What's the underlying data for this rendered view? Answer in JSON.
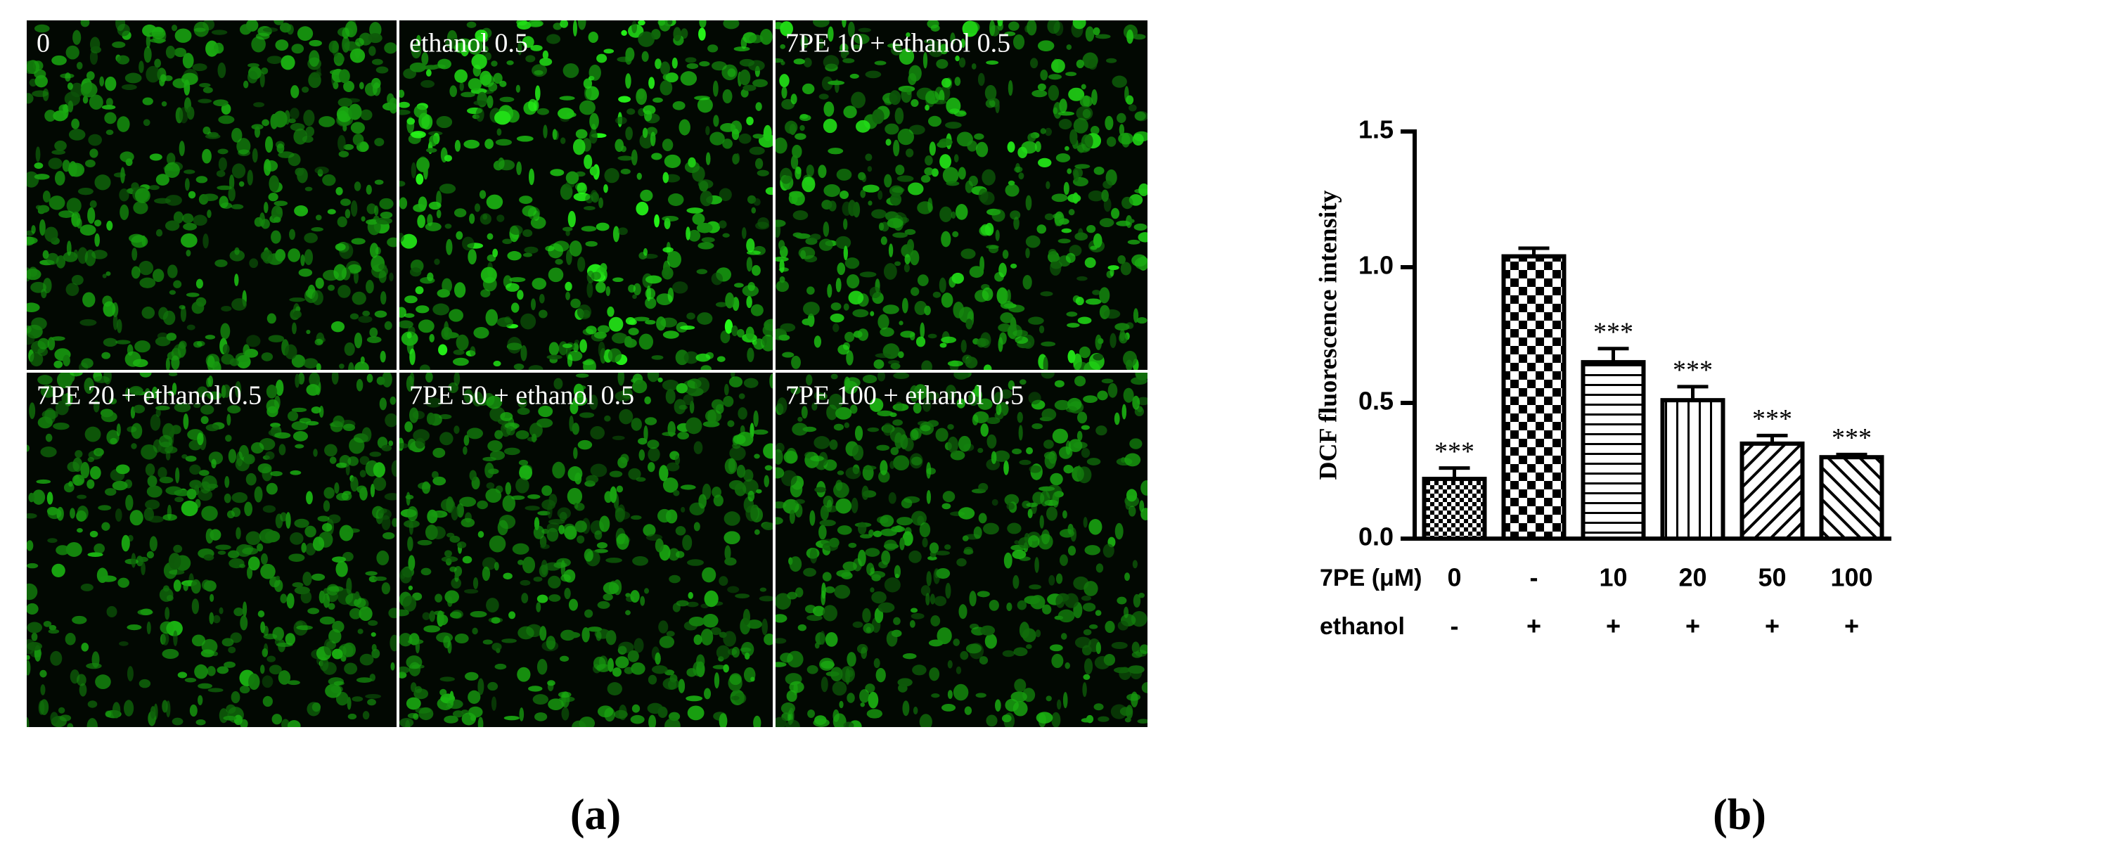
{
  "panels": [
    "0",
    "ethanol 0.5",
    "7PE 10 + ethanol 0.5",
    "7PE 20 + ethanol 0.5",
    "7PE 50 + ethanol 0.5",
    "7PE 100 + ethanol 0.5"
  ],
  "captions": [
    "(a)",
    "(b)"
  ],
  "chart_data": {
    "type": "bar",
    "y_label": "DCF fluorescence intensity",
    "category_rows": [
      {
        "name": "7PE (μM)",
        "labels": [
          "0",
          "-",
          "10",
          "20",
          "50",
          "100"
        ]
      },
      {
        "name": "ethanol",
        "labels": [
          "-",
          "+",
          "+",
          "+",
          "+",
          "+"
        ]
      }
    ],
    "values": [
      0.22,
      1.04,
      0.65,
      0.51,
      0.35,
      0.3
    ],
    "errors": [
      0.04,
      0.03,
      0.05,
      0.05,
      0.03,
      0.01
    ],
    "annotations": [
      "***",
      null,
      "***",
      "***",
      "***",
      "***"
    ],
    "patterns": [
      "dense-checker",
      "checker",
      "horizontal",
      "vertical",
      "diagonal-up",
      "diagonal-down"
    ],
    "color": "#000000",
    "ylim": [
      0,
      1.5
    ],
    "yticks": [
      {
        "value": 0,
        "label": "0.0"
      },
      {
        "value": 0.5,
        "label": "0.5"
      },
      {
        "value": 1,
        "label": "1.0"
      },
      {
        "value": 1.5,
        "label": "1.5"
      }
    ]
  }
}
